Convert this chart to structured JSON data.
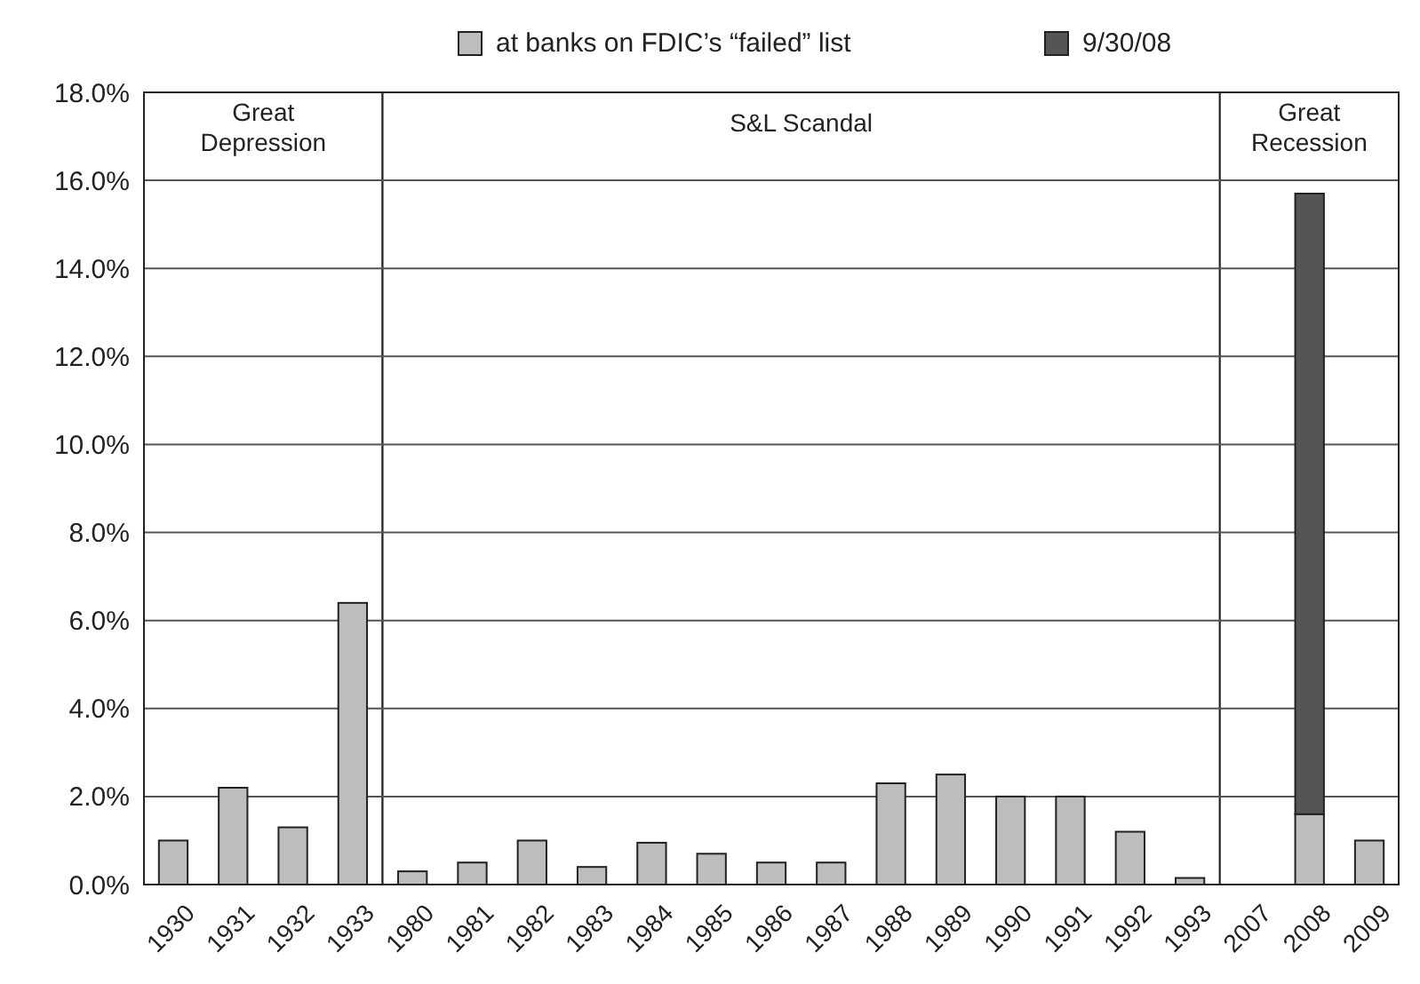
{
  "chart_data": {
    "type": "bar",
    "stacked": true,
    "categories": [
      "1930",
      "1931",
      "1932",
      "1933",
      "1980",
      "1981",
      "1982",
      "1983",
      "1984",
      "1985",
      "1986",
      "1987",
      "1988",
      "1989",
      "1990",
      "1991",
      "1992",
      "1993",
      "2007",
      "2008",
      "2009"
    ],
    "series": [
      {
        "name": "at banks on FDIC’s “failed” list",
        "color": "#bdbdbd",
        "values": [
          1.0,
          2.2,
          1.3,
          6.4,
          0.3,
          0.5,
          1.0,
          0.4,
          0.95,
          0.7,
          0.5,
          0.5,
          2.3,
          2.5,
          2.0,
          2.0,
          1.2,
          0.15,
          null,
          1.6,
          1.0
        ]
      },
      {
        "name": "9/30/08",
        "color": "#555555",
        "values": [
          null,
          null,
          null,
          null,
          null,
          null,
          null,
          null,
          null,
          null,
          null,
          null,
          null,
          null,
          null,
          null,
          null,
          null,
          null,
          14.1,
          null
        ]
      }
    ],
    "ylim": [
      0,
      18
    ],
    "yticks": [
      {
        "value": 0,
        "label": "0.0%"
      },
      {
        "value": 2,
        "label": "2.0%"
      },
      {
        "value": 4,
        "label": "4.0%"
      },
      {
        "value": 6,
        "label": "6.0%"
      },
      {
        "value": 8,
        "label": "8.0%"
      },
      {
        "value": 10,
        "label": "10.0%"
      },
      {
        "value": 12,
        "label": "12.0%"
      },
      {
        "value": 14,
        "label": "14.0%"
      },
      {
        "value": 16,
        "label": "16.0%"
      },
      {
        "value": 18,
        "label": "18.0%"
      }
    ],
    "grid": "y",
    "legend": "top",
    "bands": [
      {
        "axis": "x",
        "from": "1930",
        "to": "1933",
        "label": "Great Depression",
        "color": "#ffffff"
      },
      {
        "axis": "x",
        "from": "1980",
        "to": "1993",
        "label": "S&L Scandal",
        "color": "#ffffff"
      },
      {
        "axis": "x",
        "from": "2007",
        "to": "2009",
        "label": "Great Recession",
        "color": "#ffffff"
      }
    ]
  }
}
